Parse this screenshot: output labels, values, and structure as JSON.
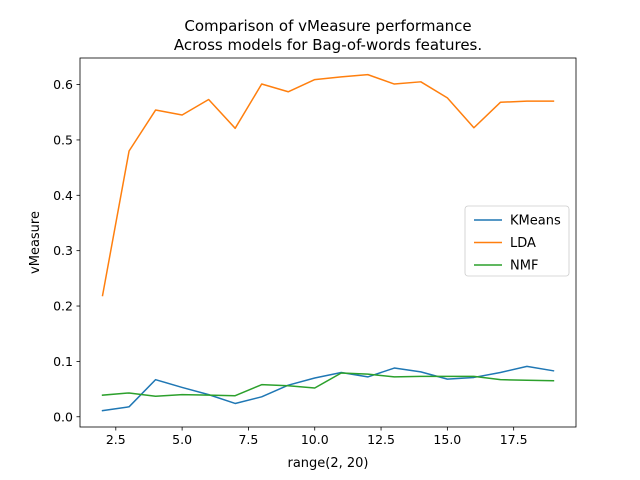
{
  "chart_data": {
    "type": "line",
    "title_line1": "Comparison of vMeasure performance",
    "title_line2": "Across models for Bag-of-words features.",
    "xlabel": "range(2, 20)",
    "ylabel": "vMeasure",
    "xlim": [
      1.15,
      19.85
    ],
    "ylim": [
      -0.0185,
      0.648
    ],
    "xticks": [
      2.5,
      5.0,
      7.5,
      10.0,
      12.5,
      15.0,
      17.5
    ],
    "xtick_labels": [
      "2.5",
      "5.0",
      "7.5",
      "10.0",
      "12.5",
      "15.0",
      "17.5"
    ],
    "yticks": [
      0.0,
      0.1,
      0.2,
      0.3,
      0.4,
      0.5,
      0.6
    ],
    "ytick_labels": [
      "0.0",
      "0.1",
      "0.2",
      "0.3",
      "0.4",
      "0.5",
      "0.6"
    ],
    "grid": false,
    "legend_position": "center-right",
    "x": [
      2,
      3,
      4,
      5,
      6,
      7,
      8,
      9,
      10,
      11,
      12,
      13,
      14,
      15,
      16,
      17,
      18,
      19
    ],
    "series": [
      {
        "name": "KMeans",
        "color": "#1f77b4",
        "values": [
          0.011,
          0.018,
          0.067,
          0.053,
          0.04,
          0.024,
          0.036,
          0.057,
          0.07,
          0.08,
          0.072,
          0.088,
          0.081,
          0.068,
          0.071,
          0.08,
          0.091,
          0.083
        ]
      },
      {
        "name": "LDA",
        "color": "#ff7f0e",
        "values": [
          0.219,
          0.48,
          0.554,
          0.545,
          0.573,
          0.521,
          0.601,
          0.587,
          0.609,
          0.614,
          0.618,
          0.601,
          0.605,
          0.576,
          0.522,
          0.568,
          0.57,
          0.57
        ]
      },
      {
        "name": "NMF",
        "color": "#2ca02c",
        "values": [
          0.039,
          0.043,
          0.037,
          0.04,
          0.039,
          0.038,
          0.058,
          0.056,
          0.052,
          0.079,
          0.077,
          0.072,
          0.073,
          0.073,
          0.073,
          0.067,
          0.066,
          0.065
        ]
      }
    ]
  }
}
